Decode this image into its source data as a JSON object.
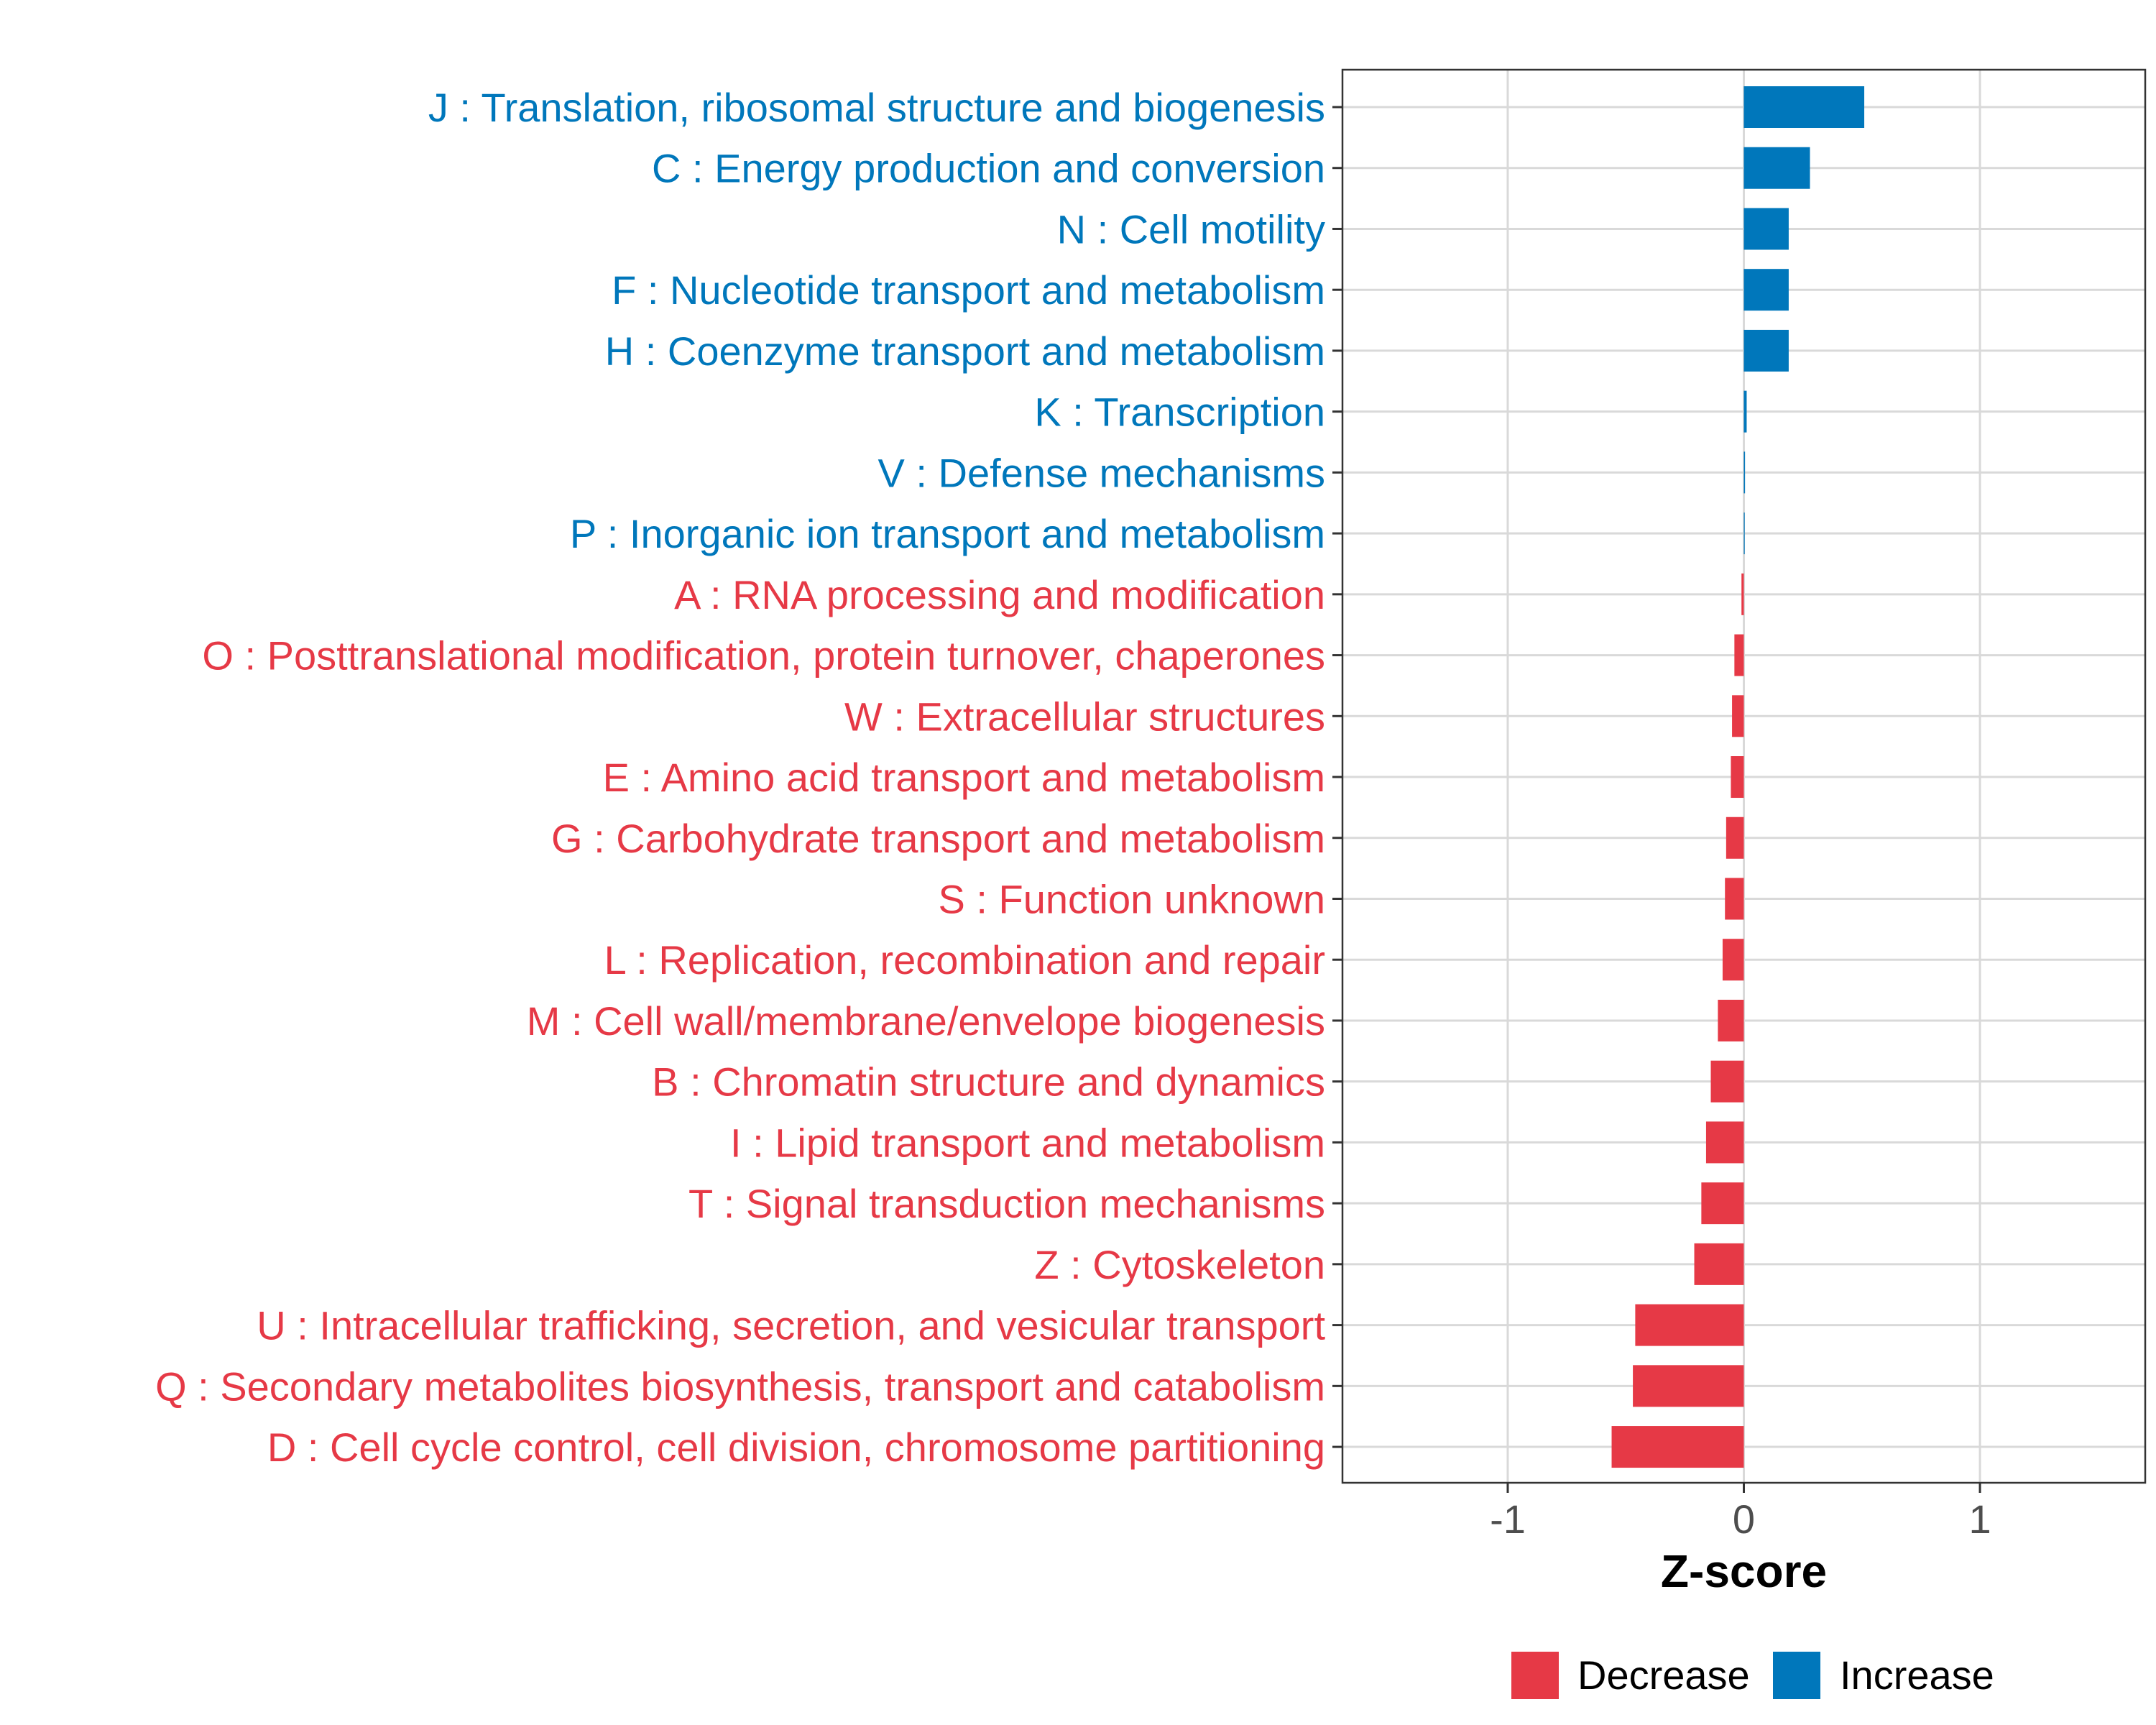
{
  "chart_data": {
    "type": "bar",
    "orientation": "horizontal",
    "xlabel": "Z-score",
    "ylabel": "",
    "xlim": [
      -1.7,
      1.7
    ],
    "xticks": [
      -1,
      0,
      1
    ],
    "xtick_labels": [
      "-1",
      "0",
      "1"
    ],
    "grid": true,
    "categories": [
      "J : Translation, ribosomal structure and biogenesis",
      "C : Energy production and conversion",
      "N : Cell motility",
      "F : Nucleotide transport and metabolism",
      "H : Coenzyme transport and metabolism",
      "K : Transcription",
      "V : Defense mechanisms",
      "P : Inorganic ion transport and metabolism",
      "A : RNA processing and modification",
      "O : Posttranslational modification, protein turnover, chaperones",
      "W : Extracellular structures",
      "E : Amino acid transport and metabolism",
      "G : Carbohydrate transport and metabolism",
      "S : Function unknown",
      "L : Replication, recombination and repair",
      "M : Cell wall/membrane/envelope biogenesis",
      "B : Chromatin structure and dynamics",
      "I : Lipid transport and metabolism",
      "T : Signal transduction mechanisms",
      "Z : Cytoskeleton",
      "U : Intracellular trafficking, secretion, and vesicular transport",
      "Q : Secondary metabolites biosynthesis, transport and catabolism",
      "D : Cell cycle control, cell division, chromosome partitioning"
    ],
    "values": [
      0.51,
      0.28,
      0.19,
      0.19,
      0.19,
      0.012,
      0.005,
      0.002,
      -0.01,
      -0.04,
      -0.05,
      -0.055,
      -0.075,
      -0.08,
      -0.09,
      -0.11,
      -0.14,
      -0.16,
      -0.18,
      -0.21,
      -0.46,
      -0.47,
      -0.56
    ],
    "legend": {
      "position": "bottom",
      "entries": [
        {
          "name": "Decrease",
          "color": "#E63946"
        },
        {
          "name": "Increase",
          "color": "#0077BB"
        }
      ]
    }
  },
  "colors": {
    "increase": "#0077BB",
    "decrease": "#E63946",
    "grid": "#d9d9d9",
    "panel_border": "#333333",
    "tick_text": "#4d4d4d"
  }
}
